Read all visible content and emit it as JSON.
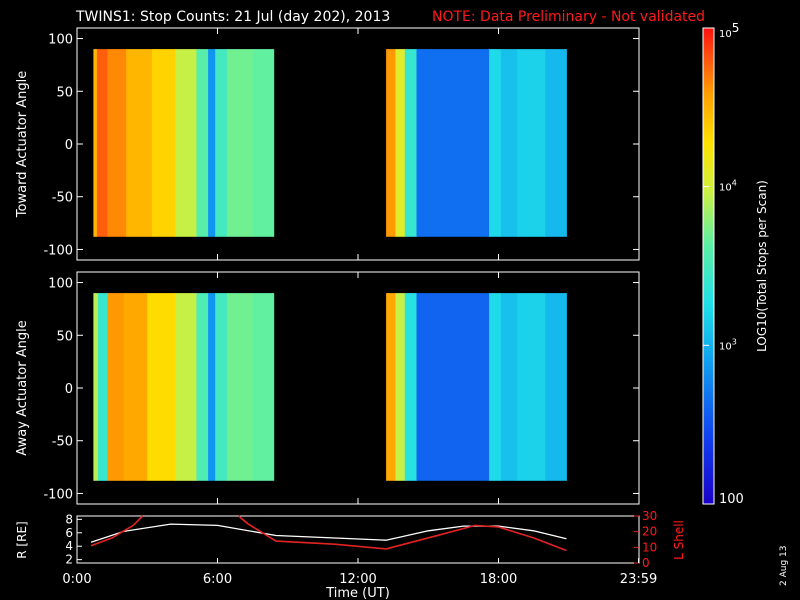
{
  "header": {
    "title": "TWINS1: Stop Counts: 21 Jul (day 202), 2013",
    "note": "NOTE: Data Preliminary - Not validated"
  },
  "stamp": "2 Aug 13",
  "colorbar": {
    "label": "LOG10(Total Stops per Scan)",
    "ticks": [
      {
        "base": "10",
        "exp": "5",
        "value": 100000
      },
      {
        "base": "10",
        "exp": "4",
        "value": 10000
      },
      {
        "base": "10",
        "exp": "3",
        "value": 1000
      },
      {
        "base": "100",
        "exp": "",
        "value": 100
      }
    ]
  },
  "chart_data": [
    {
      "type": "heatmap",
      "ylabel": "Toward Actuator Angle",
      "x_unit": "hours UT",
      "xlim": [
        0,
        24
      ],
      "ylim": [
        -110,
        110
      ],
      "yticks": [
        "100",
        "50",
        "0",
        "-50",
        "-100"
      ],
      "angle_range": [
        -88,
        90
      ],
      "color_scale": "log",
      "clim": [
        100,
        100000
      ],
      "blocks": [
        {
          "x_range": [
            0.7,
            8.4
          ]
        },
        {
          "x_range": [
            13.2,
            20.9
          ]
        }
      ],
      "columns": [
        {
          "x": [
            0.7,
            0.85
          ],
          "counts": 30000
        },
        {
          "x": [
            0.85,
            1.3
          ],
          "counts": 60000
        },
        {
          "x": [
            1.3,
            2.1
          ],
          "counts": 45000
        },
        {
          "x": [
            2.1,
            3.2
          ],
          "counts": 30000
        },
        {
          "x": [
            3.2,
            4.2
          ],
          "counts": 22000
        },
        {
          "x": [
            4.2,
            5.1
          ],
          "counts": 9000
        },
        {
          "x": [
            5.1,
            5.6
          ],
          "counts": 4000
        },
        {
          "x": [
            5.6,
            5.9
          ],
          "counts": 700
        },
        {
          "x": [
            5.9,
            6.4
          ],
          "counts": 3000
        },
        {
          "x": [
            6.4,
            7.5
          ],
          "counts": 5000
        },
        {
          "x": [
            7.5,
            8.4
          ],
          "counts": 4500
        },
        {
          "x": [
            13.2,
            13.6
          ],
          "counts": 40000
        },
        {
          "x": [
            13.6,
            14.0
          ],
          "counts": 12000
        },
        {
          "x": [
            14.0,
            14.5
          ],
          "counts": 2500
        },
        {
          "x": [
            14.5,
            17.6
          ],
          "counts": 450
        },
        {
          "x": [
            17.6,
            18.1
          ],
          "counts": 1700
        },
        {
          "x": [
            18.1,
            18.8
          ],
          "counts": 1200
        },
        {
          "x": [
            18.8,
            20.0
          ],
          "counts": 1500
        },
        {
          "x": [
            20.0,
            20.9
          ],
          "counts": 1100
        }
      ]
    },
    {
      "type": "heatmap",
      "ylabel": "Away Actuator Angle",
      "x_unit": "hours UT",
      "xlim": [
        0,
        24
      ],
      "ylim": [
        -110,
        110
      ],
      "yticks": [
        "100",
        "50",
        "0",
        "-50",
        "-100"
      ],
      "angle_range": [
        -88,
        90
      ],
      "color_scale": "log",
      "clim": [
        100,
        100000
      ],
      "blocks": [
        {
          "x_range": [
            0.7,
            8.4
          ]
        },
        {
          "x_range": [
            13.2,
            20.9
          ]
        }
      ],
      "columns": [
        {
          "x": [
            0.7,
            0.9
          ],
          "counts": 8000
        },
        {
          "x": [
            0.9,
            1.3
          ],
          "counts": 2500
        },
        {
          "x": [
            1.3,
            2.0
          ],
          "counts": 40000
        },
        {
          "x": [
            2.0,
            3.0
          ],
          "counts": 35000
        },
        {
          "x": [
            3.0,
            4.2
          ],
          "counts": 20000
        },
        {
          "x": [
            4.2,
            5.1
          ],
          "counts": 9000
        },
        {
          "x": [
            5.1,
            5.6
          ],
          "counts": 3500
        },
        {
          "x": [
            5.6,
            5.9
          ],
          "counts": 700
        },
        {
          "x": [
            5.9,
            6.4
          ],
          "counts": 3000
        },
        {
          "x": [
            6.4,
            7.5
          ],
          "counts": 5000
        },
        {
          "x": [
            7.5,
            8.4
          ],
          "counts": 4500
        },
        {
          "x": [
            13.2,
            13.6
          ],
          "counts": 35000
        },
        {
          "x": [
            13.6,
            14.0
          ],
          "counts": 9000
        },
        {
          "x": [
            14.0,
            14.5
          ],
          "counts": 2000
        },
        {
          "x": [
            14.5,
            17.6
          ],
          "counts": 400
        },
        {
          "x": [
            17.6,
            18.1
          ],
          "counts": 1700
        },
        {
          "x": [
            18.1,
            18.8
          ],
          "counts": 1200
        },
        {
          "x": [
            18.8,
            20.0
          ],
          "counts": 1500
        },
        {
          "x": [
            20.0,
            20.9
          ],
          "counts": 1100
        }
      ]
    },
    {
      "type": "line",
      "ylabel": "R [RE]",
      "y2label": "L Shell",
      "xlabel": "Time (UT)",
      "xlim": [
        0,
        24
      ],
      "xticks": [
        "0:00",
        "6:00",
        "12:00",
        "18:00",
        "23:59"
      ],
      "ylim": [
        1.5,
        8.5
      ],
      "yticks": [
        "8",
        "6",
        "4",
        "2"
      ],
      "y2lim": [
        0,
        30
      ],
      "y2ticks": [
        "30",
        "20",
        "10",
        "0"
      ],
      "series": [
        {
          "color": "#ffffff",
          "x": [
            0.6,
            2.0,
            4.0,
            6.0,
            8.5,
            13.2,
            15.0,
            16.5,
            18.0,
            19.5,
            20.9
          ],
          "y": [
            4.6,
            6.2,
            7.3,
            7.1,
            5.6,
            4.9,
            6.3,
            7.0,
            7.0,
            6.3,
            5.1
          ]
        },
        {
          "color": "#e52222",
          "y_axis": "right",
          "segments": [
            {
              "x": [
                0.6,
                1.5,
                2.4,
                2.8
              ],
              "y": [
                11,
                16,
                24,
                30
              ]
            },
            {
              "x": [
                6.9,
                7.3,
                8.5,
                11.0,
                13.2,
                15.5,
                17.0,
                18.0,
                19.5,
                20.9
              ],
              "y": [
                30,
                25,
                14,
                12,
                9,
                18,
                24,
                23,
                16,
                8
              ]
            }
          ]
        }
      ]
    }
  ]
}
